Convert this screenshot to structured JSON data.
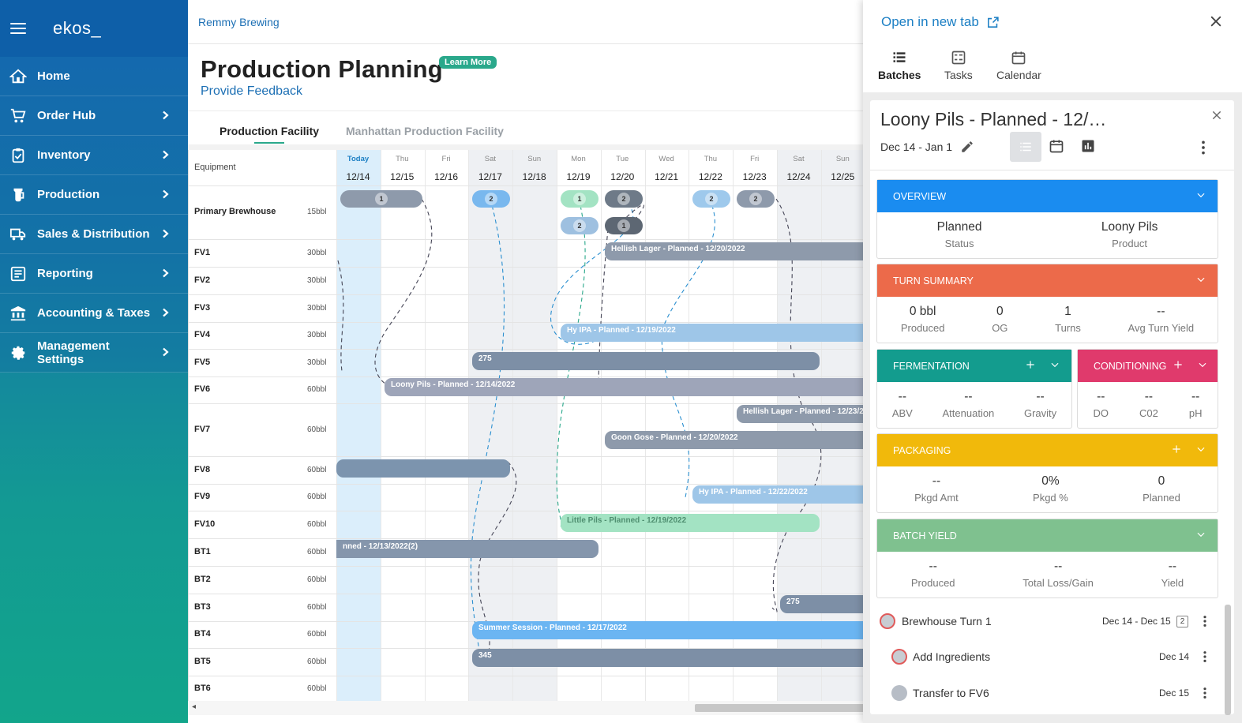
{
  "sidebar": {
    "brand": "ekos_",
    "items": [
      {
        "label": "Home",
        "icon": "home-icon",
        "has_children": false
      },
      {
        "label": "Order Hub",
        "icon": "cart-icon",
        "has_children": true
      },
      {
        "label": "Inventory",
        "icon": "clipboard-icon",
        "has_children": true
      },
      {
        "label": "Production",
        "icon": "flask-icon",
        "has_children": true
      },
      {
        "label": "Sales & Distribution",
        "icon": "truck-icon",
        "has_children": true
      },
      {
        "label": "Reporting",
        "icon": "report-icon",
        "has_children": true
      },
      {
        "label": "Accounting & Taxes",
        "icon": "bank-icon",
        "has_children": true
      },
      {
        "label": "Management Settings",
        "icon": "gear-icon",
        "has_children": true
      }
    ]
  },
  "main": {
    "breadcrumb": "Remmy Brewing",
    "title": "Production Planning",
    "learn_more": "Learn More",
    "feedback": "Provide Feedback",
    "facility_tabs": [
      "Production Facility",
      "Manhattan Production Facility"
    ]
  },
  "schedule": {
    "equipment_header": "Equipment",
    "days": [
      {
        "day": "Today",
        "date": "12/14"
      },
      {
        "day": "Thu",
        "date": "12/15"
      },
      {
        "day": "Fri",
        "date": "12/16"
      },
      {
        "day": "Sat",
        "date": "12/17"
      },
      {
        "day": "Sun",
        "date": "12/18"
      },
      {
        "day": "Mon",
        "date": "12/19"
      },
      {
        "day": "Tue",
        "date": "12/20"
      },
      {
        "day": "Wed",
        "date": "12/21"
      },
      {
        "day": "Thu",
        "date": "12/22"
      },
      {
        "day": "Fri",
        "date": "12/23"
      },
      {
        "day": "Sat",
        "date": "12/24"
      },
      {
        "day": "Sun",
        "date": "12/25"
      }
    ],
    "equipment": [
      {
        "name": "Primary Brewhouse",
        "capacity": "15bbl"
      },
      {
        "name": "FV1",
        "capacity": "30bbl"
      },
      {
        "name": "FV2",
        "capacity": "30bbl"
      },
      {
        "name": "FV3",
        "capacity": "30bbl"
      },
      {
        "name": "FV4",
        "capacity": "30bbl"
      },
      {
        "name": "FV5",
        "capacity": "30bbl"
      },
      {
        "name": "FV6",
        "capacity": "60bbl"
      },
      {
        "name": "FV7",
        "capacity": "60bbl"
      },
      {
        "name": "FV8",
        "capacity": "60bbl"
      },
      {
        "name": "FV9",
        "capacity": "60bbl"
      },
      {
        "name": "FV10",
        "capacity": "60bbl"
      },
      {
        "name": "BT1",
        "capacity": "60bbl"
      },
      {
        "name": "BT2",
        "capacity": "60bbl"
      },
      {
        "name": "BT3",
        "capacity": "60bbl"
      },
      {
        "name": "BT4",
        "capacity": "60bbl"
      },
      {
        "name": "BT5",
        "capacity": "60bbl"
      },
      {
        "name": "BT6",
        "capacity": "60bbl"
      }
    ],
    "brew_pills": [
      "1",
      "2",
      "1",
      "2",
      "2",
      "2",
      "2",
      "1"
    ],
    "bars": [
      "Hellish Lager - Planned - 12/20/2022",
      "Hy IPA - Planned - 12/19/2022",
      "275",
      "Loony Pils - Planned - 12/14/2022",
      "Hellish Lager - Planned - 12/23/2",
      "Goon Gose - Planned - 12/20/2022",
      "",
      "Hy IPA - Planned - 12/22/2022",
      "Little Pils - Planned - 12/19/2022",
      "nned - 12/13/2022(2)",
      "275",
      "Summer Session - Planned - 12/17/2022",
      "345"
    ]
  },
  "panel": {
    "open_new_tab": "Open in new tab",
    "tabs": [
      "Batches",
      "Tasks",
      "Calendar"
    ],
    "batch_title": "Loony Pils - Planned - 12/…",
    "batch_dates": "Dec 14 - Jan 1",
    "overview": {
      "header": "OVERVIEW",
      "stats": [
        {
          "value": "Planned",
          "label": "Status"
        },
        {
          "value": "Loony Pils",
          "label": "Product"
        }
      ]
    },
    "turn_summary": {
      "header": "TURN SUMMARY",
      "stats": [
        {
          "value": "0 bbl",
          "label": "Produced"
        },
        {
          "value": "0",
          "label": "OG"
        },
        {
          "value": "1",
          "label": "Turns"
        },
        {
          "value": "--",
          "label": "Avg Turn Yield"
        }
      ]
    },
    "fermentation": {
      "header": "FERMENTATION",
      "stats": [
        {
          "value": "--",
          "label": "ABV"
        },
        {
          "value": "--",
          "label": "Attenuation"
        },
        {
          "value": "--",
          "label": "Gravity"
        }
      ]
    },
    "conditioning": {
      "header": "CONDITIONING",
      "stats": [
        {
          "value": "--",
          "label": "DO"
        },
        {
          "value": "--",
          "label": "C02"
        },
        {
          "value": "--",
          "label": "pH"
        }
      ]
    },
    "packaging": {
      "header": "PACKAGING",
      "stats": [
        {
          "value": "--",
          "label": "Pkgd Amt"
        },
        {
          "value": "0%",
          "label": "Pkgd %"
        },
        {
          "value": "0",
          "label": "Planned"
        }
      ]
    },
    "batch_yield": {
      "header": "BATCH YIELD",
      "stats": [
        {
          "value": "--",
          "label": "Produced"
        },
        {
          "value": "--",
          "label": "Total Loss/Gain"
        },
        {
          "value": "--",
          "label": "Yield"
        }
      ]
    },
    "tasks": [
      {
        "label": "Brewhouse Turn 1",
        "date": "Dec 14 - Dec 15",
        "count": "2"
      },
      {
        "label": "Add Ingredients",
        "date": "Dec 14"
      },
      {
        "label": "Transfer to FV6",
        "date": "Dec 15"
      }
    ]
  },
  "colors": {
    "overview": "#1a8cf0",
    "turn_summary": "#ec6a4a",
    "fermentation": "#139c8e",
    "conditioning": "#e03a6c",
    "packaging": "#f1b90b",
    "batch_yield": "#7fc18f",
    "accent": "#2aa88b",
    "link": "#1c7fc4"
  }
}
